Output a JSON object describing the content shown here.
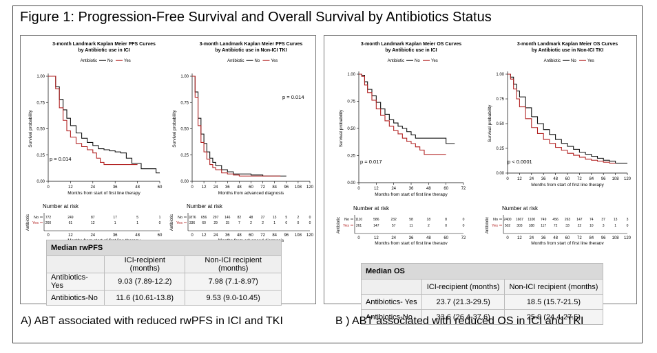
{
  "figure": {
    "title": "Figure 1: Progression-Free Survival and Overall Survival by Antibiotics Status",
    "caption_a": "A) ABT associated with reduced rwPFS in ICI and TKI",
    "caption_b": "B ) ABT associated with reduced OS in ICI and TKI"
  },
  "colors": {
    "no": "#111111",
    "yes": "#b22222",
    "grid": "#000000"
  },
  "legend": {
    "title": "Antibiotic",
    "no": "No",
    "yes": "Yes"
  },
  "risk": {
    "title": "Number at risk",
    "ylabel": "Antibiotic",
    "no": "No",
    "yes": "Yes"
  },
  "chart_data": [
    {
      "type": "line",
      "title": "3-month Landmark Kaplan Meier PFS Curves",
      "subtitle": "by Antibiotic use in ICI",
      "xlabel": "Months from start of first line therapy",
      "ylabel": "Survival probability",
      "xlim": [
        0,
        60
      ],
      "ylim": [
        0,
        1
      ],
      "xticks": [
        "0",
        "12",
        "24",
        "36",
        "48",
        "60"
      ],
      "yticks": [
        "0.00",
        "0.25",
        "0.50",
        "0.75",
        "1.00"
      ],
      "pvalue": "p = 0.014",
      "series": [
        {
          "name": "No",
          "x": [
            0,
            2,
            4,
            6,
            8,
            10,
            12,
            15,
            18,
            21,
            24,
            27,
            30,
            33,
            36,
            39,
            42,
            45,
            48,
            50,
            54,
            58,
            60
          ],
          "y": [
            1.0,
            1.0,
            0.9,
            0.78,
            0.68,
            0.6,
            0.53,
            0.46,
            0.41,
            0.37,
            0.34,
            0.31,
            0.3,
            0.29,
            0.28,
            0.27,
            0.22,
            0.17,
            0.17,
            0.12,
            0.12,
            0.08,
            0.08
          ]
        },
        {
          "name": "Yes",
          "x": [
            0,
            2,
            4,
            6,
            8,
            10,
            12,
            15,
            18,
            21,
            24,
            26,
            28,
            30,
            33,
            36,
            40,
            44,
            48
          ],
          "y": [
            1.0,
            1.0,
            0.88,
            0.7,
            0.58,
            0.48,
            0.42,
            0.36,
            0.33,
            0.3,
            0.27,
            0.22,
            0.18,
            0.16,
            0.16,
            0.16,
            0.16,
            0.16,
            0.16
          ]
        }
      ],
      "risk_x": [
        "0",
        "12",
        "24",
        "36",
        "48",
        "60"
      ],
      "risk_no": [
        "772",
        "249",
        "87",
        "17",
        "5",
        "1"
      ],
      "risk_yes": [
        "260",
        "61",
        "12",
        "1",
        "1",
        "0"
      ]
    },
    {
      "type": "line",
      "title": "3-month Landmark Kaplan Meier PFS Curves",
      "subtitle": "by Antibiotic use in Non-ICI TKI",
      "xlabel": "Months from advanced diagnosis",
      "ylabel": "Survival probability",
      "xlim": [
        0,
        120
      ],
      "ylim": [
        0,
        1
      ],
      "xticks": [
        "0",
        "12",
        "24",
        "36",
        "48",
        "60",
        "72",
        "84",
        "96",
        "108",
        "120"
      ],
      "yticks": [
        "0.00",
        "0.25",
        "0.50",
        "0.75",
        "1.00"
      ],
      "pvalue": "p = 0.014",
      "series": [
        {
          "name": "No",
          "x": [
            0,
            3,
            6,
            9,
            12,
            15,
            18,
            21,
            24,
            30,
            36,
            42,
            48,
            60,
            72,
            84,
            96
          ],
          "y": [
            1.0,
            0.85,
            0.6,
            0.45,
            0.36,
            0.28,
            0.22,
            0.18,
            0.15,
            0.11,
            0.09,
            0.07,
            0.07,
            0.06,
            0.05,
            0.05,
            0.05
          ]
        },
        {
          "name": "Yes",
          "x": [
            0,
            3,
            6,
            9,
            12,
            15,
            18,
            21,
            24,
            30,
            36,
            42,
            48,
            60,
            72,
            84,
            90
          ],
          "y": [
            1.0,
            0.8,
            0.53,
            0.37,
            0.28,
            0.21,
            0.16,
            0.13,
            0.11,
            0.08,
            0.07,
            0.06,
            0.05,
            0.05,
            0.05,
            0.05,
            0.05
          ]
        }
      ],
      "risk_x": [
        "0",
        "12",
        "24",
        "36",
        "48",
        "60",
        "72",
        "84",
        "96",
        "108",
        "120"
      ],
      "risk_no": [
        "1876",
        "656",
        "297",
        "146",
        "82",
        "48",
        "27",
        "13",
        "5",
        "2",
        "0"
      ],
      "risk_yes": [
        "336",
        "60",
        "29",
        "15",
        "7",
        "2",
        "2",
        "1",
        "0",
        "0",
        "0"
      ]
    },
    {
      "type": "line",
      "title": "3-month Landmark Kaplan Meier OS Curves",
      "subtitle": "by Antibiotic use in ICI",
      "xlabel": "Months from start of first line therapy",
      "ylabel": "Survival probability",
      "xlim": [
        0,
        72
      ],
      "ylim": [
        0,
        1
      ],
      "xticks": [
        "0",
        "12",
        "24",
        "36",
        "48",
        "60",
        "72"
      ],
      "yticks": [
        "0.00",
        "0.25",
        "0.50",
        "0.75",
        "1.00"
      ],
      "pvalue": "p = 0.017",
      "series": [
        {
          "name": "No",
          "x": [
            0,
            2,
            4,
            6,
            9,
            12,
            15,
            18,
            21,
            24,
            27,
            30,
            33,
            36,
            39,
            42,
            48,
            54,
            60,
            66
          ],
          "y": [
            1.0,
            0.99,
            0.93,
            0.86,
            0.8,
            0.74,
            0.68,
            0.63,
            0.58,
            0.55,
            0.52,
            0.5,
            0.47,
            0.44,
            0.41,
            0.41,
            0.41,
            0.41,
            0.36,
            0.36
          ]
        },
        {
          "name": "Yes",
          "x": [
            0,
            2,
            4,
            6,
            9,
            12,
            15,
            18,
            21,
            24,
            27,
            30,
            33,
            36,
            39,
            42,
            45,
            48,
            54,
            60
          ],
          "y": [
            1.0,
            0.98,
            0.9,
            0.83,
            0.76,
            0.68,
            0.62,
            0.57,
            0.52,
            0.48,
            0.45,
            0.41,
            0.38,
            0.36,
            0.33,
            0.3,
            0.26,
            0.26,
            0.26,
            0.26
          ]
        }
      ],
      "risk_x": [
        "0",
        "12",
        "24",
        "36",
        "48",
        "60",
        "72"
      ],
      "risk_no": [
        "1110",
        "586",
        "232",
        "58",
        "18",
        "8",
        "0"
      ],
      "risk_yes": [
        "261",
        "147",
        "57",
        "11",
        "2",
        "0",
        "0"
      ]
    },
    {
      "type": "line",
      "title": "3-month Landmark Kaplan Meier OS Curves",
      "subtitle": "by Antibiotic use in Non-ICI TKI",
      "xlabel": "Months from start of first line therapy",
      "ylabel": "Survival probability",
      "xlim": [
        0,
        120
      ],
      "ylim": [
        0,
        1
      ],
      "xticks": [
        "0",
        "12",
        "24",
        "36",
        "48",
        "60",
        "72",
        "84",
        "96",
        "108",
        "120"
      ],
      "yticks": [
        "0.00",
        "0.25",
        "0.50",
        "0.75",
        "1.00"
      ],
      "pvalue": "p < 0.0001",
      "series": [
        {
          "name": "No",
          "x": [
            0,
            3,
            6,
            9,
            12,
            18,
            24,
            30,
            36,
            42,
            48,
            54,
            60,
            66,
            72,
            78,
            84,
            90,
            96,
            102,
            108,
            114,
            120
          ],
          "y": [
            1.0,
            0.97,
            0.9,
            0.83,
            0.77,
            0.66,
            0.57,
            0.5,
            0.44,
            0.39,
            0.34,
            0.3,
            0.27,
            0.24,
            0.21,
            0.19,
            0.17,
            0.15,
            0.13,
            0.12,
            0.1,
            0.1,
            0.1
          ]
        },
        {
          "name": "Yes",
          "x": [
            0,
            3,
            6,
            9,
            12,
            18,
            24,
            30,
            36,
            42,
            48,
            54,
            60,
            66,
            72,
            78,
            84,
            90,
            96,
            102,
            108
          ],
          "y": [
            1.0,
            0.95,
            0.85,
            0.75,
            0.67,
            0.55,
            0.46,
            0.4,
            0.34,
            0.3,
            0.26,
            0.23,
            0.2,
            0.18,
            0.16,
            0.14,
            0.13,
            0.12,
            0.11,
            0.1,
            0.1
          ]
        }
      ],
      "risk_x": [
        "0",
        "12",
        "24",
        "36",
        "48",
        "60",
        "72",
        "84",
        "96",
        "108",
        "120"
      ],
      "risk_no": [
        "2400",
        "1667",
        "1100",
        "749",
        "456",
        "263",
        "147",
        "74",
        "37",
        "13",
        "3"
      ],
      "risk_yes": [
        "502",
        "303",
        "188",
        "117",
        "72",
        "33",
        "22",
        "10",
        "3",
        "1",
        "0"
      ]
    }
  ],
  "table_pfs": {
    "title": "Median rwPFS",
    "col1": "ICI-recipient (months)",
    "col2": "Non-ICI recipient (months)",
    "rows": [
      {
        "label": "Antibiotics-Yes",
        "ici": "9.03 (7.89-12.2)",
        "non": "7.98 (7.1-8.97)"
      },
      {
        "label": "Antibiotics-No",
        "ici": "11.6 (10.61-13.8)",
        "non": "9.53 (9.0-10.45)"
      }
    ]
  },
  "table_os": {
    "title": "Median OS",
    "col1": "ICI-recipient (months)",
    "col2": "Non-ICI recipient (months)",
    "rows": [
      {
        "label": "Antibiotics- Yes",
        "ici": "23.7 (21.3-29.5)",
        "non": "18.5 (15.7-21.5)"
      },
      {
        "label": "Antibiotics-No",
        "ici": "33.6 (26.4-37.6)",
        "non": "25.9 (24.4-27.5)"
      }
    ]
  }
}
